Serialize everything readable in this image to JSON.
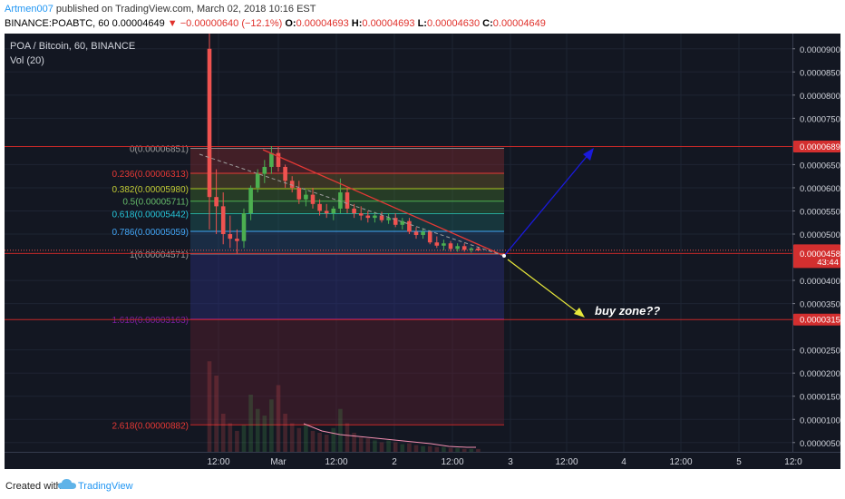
{
  "header": {
    "author": "Artmen007",
    "published_text": "published on TradingView.com, March 02, 2018 10:16 EST",
    "symbol": "BINANCE:POABTC, 60",
    "last": "0.00004649",
    "change": "−0.00000640 (−12.1%)",
    "ohlc": {
      "o_label": "O:",
      "o": "0.00004693",
      "h_label": "H:",
      "h": "0.00004693",
      "l_label": "L:",
      "l": "0.00004630",
      "c_label": "C:",
      "c": "0.00004649"
    }
  },
  "legend": {
    "title": "POA / Bitcoin, 60, BINANCE",
    "vol": "Vol (20)"
  },
  "footer": {
    "created_with": "Created with",
    "brand": "TradingView"
  },
  "colors": {
    "background": "#131722",
    "up": "#4caf50",
    "down": "#ef5350",
    "axis_text": "#d1d4dc",
    "price_label_bg": "#d32f2f",
    "blue_arrow": "#1a1adc",
    "yellow_arrow": "#e8e83a",
    "trendline": "#e53935"
  },
  "chart_data": {
    "type": "candlestick",
    "title": "POA / Bitcoin, 60, BINANCE",
    "y_axis": {
      "ticks": [
        "0.00009000",
        "0.00008500",
        "0.00008000",
        "0.00007500",
        "0.00006500",
        "0.00006000",
        "0.00005500",
        "0.00005000",
        "0.00004000",
        "0.00003500",
        "0.00002500",
        "0.00002000",
        "0.00001500",
        "0.00001000",
        "0.00000500"
      ],
      "range": [
        3e-06,
        9.25e-05
      ]
    },
    "x_axis": {
      "ticks": [
        "12:00",
        "Mar",
        "12:00",
        "2",
        "12:00",
        "3",
        "12:00",
        "4",
        "12:00",
        "5",
        "12:0"
      ]
    },
    "price_labels": [
      {
        "value": "0.00006890",
        "price": 6.89e-05
      },
      {
        "value": "0.00004649",
        "price": 4.649e-05,
        "sub": "43:44"
      },
      {
        "value": "0.00004581",
        "price": 4.581e-05
      },
      {
        "value": "0.00003155",
        "price": 3.155e-05
      }
    ],
    "horizontal_lines": [
      6.89e-05,
      4.581e-05,
      3.155e-05
    ],
    "fibonacci": [
      {
        "label": "0(0.00006851)",
        "level": 0,
        "price": 6.851e-05
      },
      {
        "label": "0.236(0.00006313)",
        "level": 0.236,
        "price": 6.313e-05
      },
      {
        "label": "0.382(0.00005980)",
        "level": 0.382,
        "price": 5.98e-05
      },
      {
        "label": "0.5(0.00005711)",
        "level": 0.5,
        "price": 5.711e-05
      },
      {
        "label": "0.618(0.00005442)",
        "level": 0.618,
        "price": 5.442e-05
      },
      {
        "label": "0.786(0.00005059)",
        "level": 0.786,
        "price": 5.059e-05
      },
      {
        "label": "1(0.00004571)",
        "level": 1,
        "price": 4.571e-05
      },
      {
        "label": "1.618(0.00003163)",
        "level": 1.618,
        "price": 3.163e-05
      },
      {
        "label": "2.618(0.00000882)",
        "level": 2.618,
        "price": 8.82e-06
      }
    ],
    "annotations": [
      {
        "text": "buy zone??"
      }
    ],
    "candles": [
      {
        "o": 9e-05,
        "h": 9.6e-05,
        "l": 5.1e-05,
        "c": 5.8e-05
      },
      {
        "o": 5.8e-05,
        "h": 6.4e-05,
        "l": 5e-05,
        "c": 5.6e-05
      },
      {
        "o": 5.6e-05,
        "h": 5.9e-05,
        "l": 4.78e-05,
        "c": 5e-05
      },
      {
        "o": 5e-05,
        "h": 5.4e-05,
        "l": 4.7e-05,
        "c": 4.9e-05
      },
      {
        "o": 4.9e-05,
        "h": 5.1e-05,
        "l": 4.58e-05,
        "c": 4.85e-05
      },
      {
        "o": 4.85e-05,
        "h": 5.55e-05,
        "l": 4.7e-05,
        "c": 5.45e-05
      },
      {
        "o": 5.45e-05,
        "h": 6.05e-05,
        "l": 5.3e-05,
        "c": 6e-05
      },
      {
        "o": 6e-05,
        "h": 6.4e-05,
        "l": 5.9e-05,
        "c": 6.3e-05
      },
      {
        "o": 6.3e-05,
        "h": 6.6e-05,
        "l": 6.1e-05,
        "c": 6.45e-05
      },
      {
        "o": 6.45e-05,
        "h": 6.9e-05,
        "l": 6.3e-05,
        "c": 6.75e-05
      },
      {
        "o": 6.75e-05,
        "h": 6.88e-05,
        "l": 6.35e-05,
        "c": 6.45e-05
      },
      {
        "o": 6.45e-05,
        "h": 6.5e-05,
        "l": 6e-05,
        "c": 6.15e-05
      },
      {
        "o": 6.15e-05,
        "h": 6.25e-05,
        "l": 5.9e-05,
        "c": 6e-05
      },
      {
        "o": 6e-05,
        "h": 6.15e-05,
        "l": 5.65e-05,
        "c": 5.75e-05
      },
      {
        "o": 5.75e-05,
        "h": 5.95e-05,
        "l": 5.6e-05,
        "c": 5.85e-05
      },
      {
        "o": 5.85e-05,
        "h": 6e-05,
        "l": 5.55e-05,
        "c": 5.65e-05
      },
      {
        "o": 5.65e-05,
        "h": 5.75e-05,
        "l": 5.4e-05,
        "c": 5.5e-05
      },
      {
        "o": 5.5e-05,
        "h": 5.65e-05,
        "l": 5.35e-05,
        "c": 5.45e-05
      },
      {
        "o": 5.45e-05,
        "h": 5.6e-05,
        "l": 5.3e-05,
        "c": 5.55e-05
      },
      {
        "o": 5.55e-05,
        "h": 6.2e-05,
        "l": 5.45e-05,
        "c": 5.9e-05
      },
      {
        "o": 5.9e-05,
        "h": 6e-05,
        "l": 5.45e-05,
        "c": 5.55e-05
      },
      {
        "o": 5.55e-05,
        "h": 5.65e-05,
        "l": 5.35e-05,
        "c": 5.45e-05
      },
      {
        "o": 5.45e-05,
        "h": 5.6e-05,
        "l": 5.3e-05,
        "c": 5.4e-05
      },
      {
        "o": 5.4e-05,
        "h": 5.5e-05,
        "l": 5.25e-05,
        "c": 5.35e-05
      },
      {
        "o": 5.35e-05,
        "h": 5.48e-05,
        "l": 5.25e-05,
        "c": 5.4e-05
      },
      {
        "o": 5.4e-05,
        "h": 5.48e-05,
        "l": 5.25e-05,
        "c": 5.3e-05
      },
      {
        "o": 5.3e-05,
        "h": 5.45e-05,
        "l": 5.22e-05,
        "c": 5.35e-05
      },
      {
        "o": 5.35e-05,
        "h": 5.45e-05,
        "l": 5.15e-05,
        "c": 5.2e-05
      },
      {
        "o": 5.2e-05,
        "h": 5.35e-05,
        "l": 5.1e-05,
        "c": 5.28e-05
      },
      {
        "o": 5.28e-05,
        "h": 5.35e-05,
        "l": 5e-05,
        "c": 5.05e-05
      },
      {
        "o": 5.05e-05,
        "h": 5.15e-05,
        "l": 4.9e-05,
        "c": 4.98e-05
      },
      {
        "o": 4.98e-05,
        "h": 5.12e-05,
        "l": 4.9e-05,
        "c": 5.05e-05
      },
      {
        "o": 5.05e-05,
        "h": 5.08e-05,
        "l": 4.78e-05,
        "c": 4.82e-05
      },
      {
        "o": 4.82e-05,
        "h": 4.95e-05,
        "l": 4.7e-05,
        "c": 4.75e-05
      },
      {
        "o": 4.75e-05,
        "h": 4.88e-05,
        "l": 4.65e-05,
        "c": 4.8e-05
      },
      {
        "o": 4.8e-05,
        "h": 4.85e-05,
        "l": 4.62e-05,
        "c": 4.68e-05
      },
      {
        "o": 4.68e-05,
        "h": 4.8e-05,
        "l": 4.62e-05,
        "c": 4.74e-05
      },
      {
        "o": 4.74e-05,
        "h": 4.8e-05,
        "l": 4.62e-05,
        "c": 4.66e-05
      },
      {
        "o": 4.66e-05,
        "h": 4.72e-05,
        "l": 4.6e-05,
        "c": 4.69e-05
      },
      {
        "o": 4.69e-05,
        "h": 4.72e-05,
        "l": 4.63e-05,
        "c": 4.65e-05
      }
    ],
    "volume_profile": [
      95,
      80,
      40,
      30,
      22,
      28,
      60,
      45,
      38,
      55,
      70,
      40,
      30,
      25,
      28,
      22,
      20,
      18,
      25,
      45,
      30,
      20,
      15,
      14,
      12,
      10,
      12,
      10,
      8,
      9,
      7,
      6,
      6,
      5,
      5,
      4,
      4,
      3,
      3,
      3
    ]
  }
}
